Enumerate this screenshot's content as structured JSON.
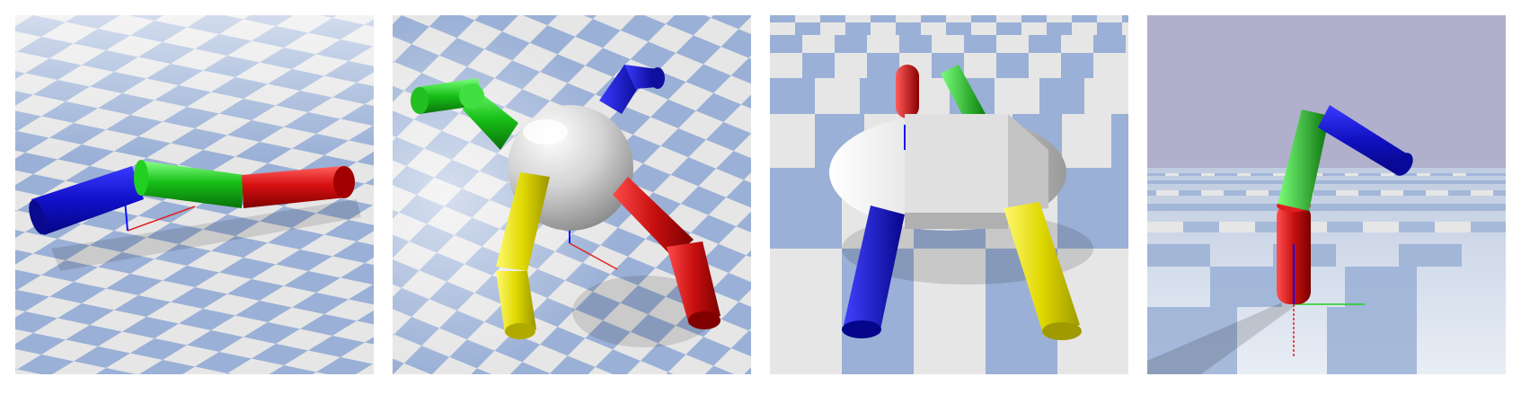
{
  "panels": [
    {
      "id": "snake-robot",
      "limb_colors": [
        "#1010c8",
        "#18c018",
        "#d81010",
        "#a00000"
      ]
    },
    {
      "id": "ant-robot-perspective",
      "limb_colors": [
        "#18c018",
        "#1010c8",
        "#d81010",
        "#e6e600"
      ]
    },
    {
      "id": "ant-robot-front",
      "limb_colors": [
        "#d81010",
        "#18c018",
        "#1010c8",
        "#e6e600"
      ]
    },
    {
      "id": "hopper-robot",
      "limb_colors": [
        "#d81010",
        "#18c018",
        "#1010c8"
      ]
    }
  ],
  "colors": {
    "floor_light": "#e6e6e6",
    "floor_blue": "#9ab0d6",
    "sky": "#b0b0cc",
    "body_gray": "#d8d8d8"
  }
}
